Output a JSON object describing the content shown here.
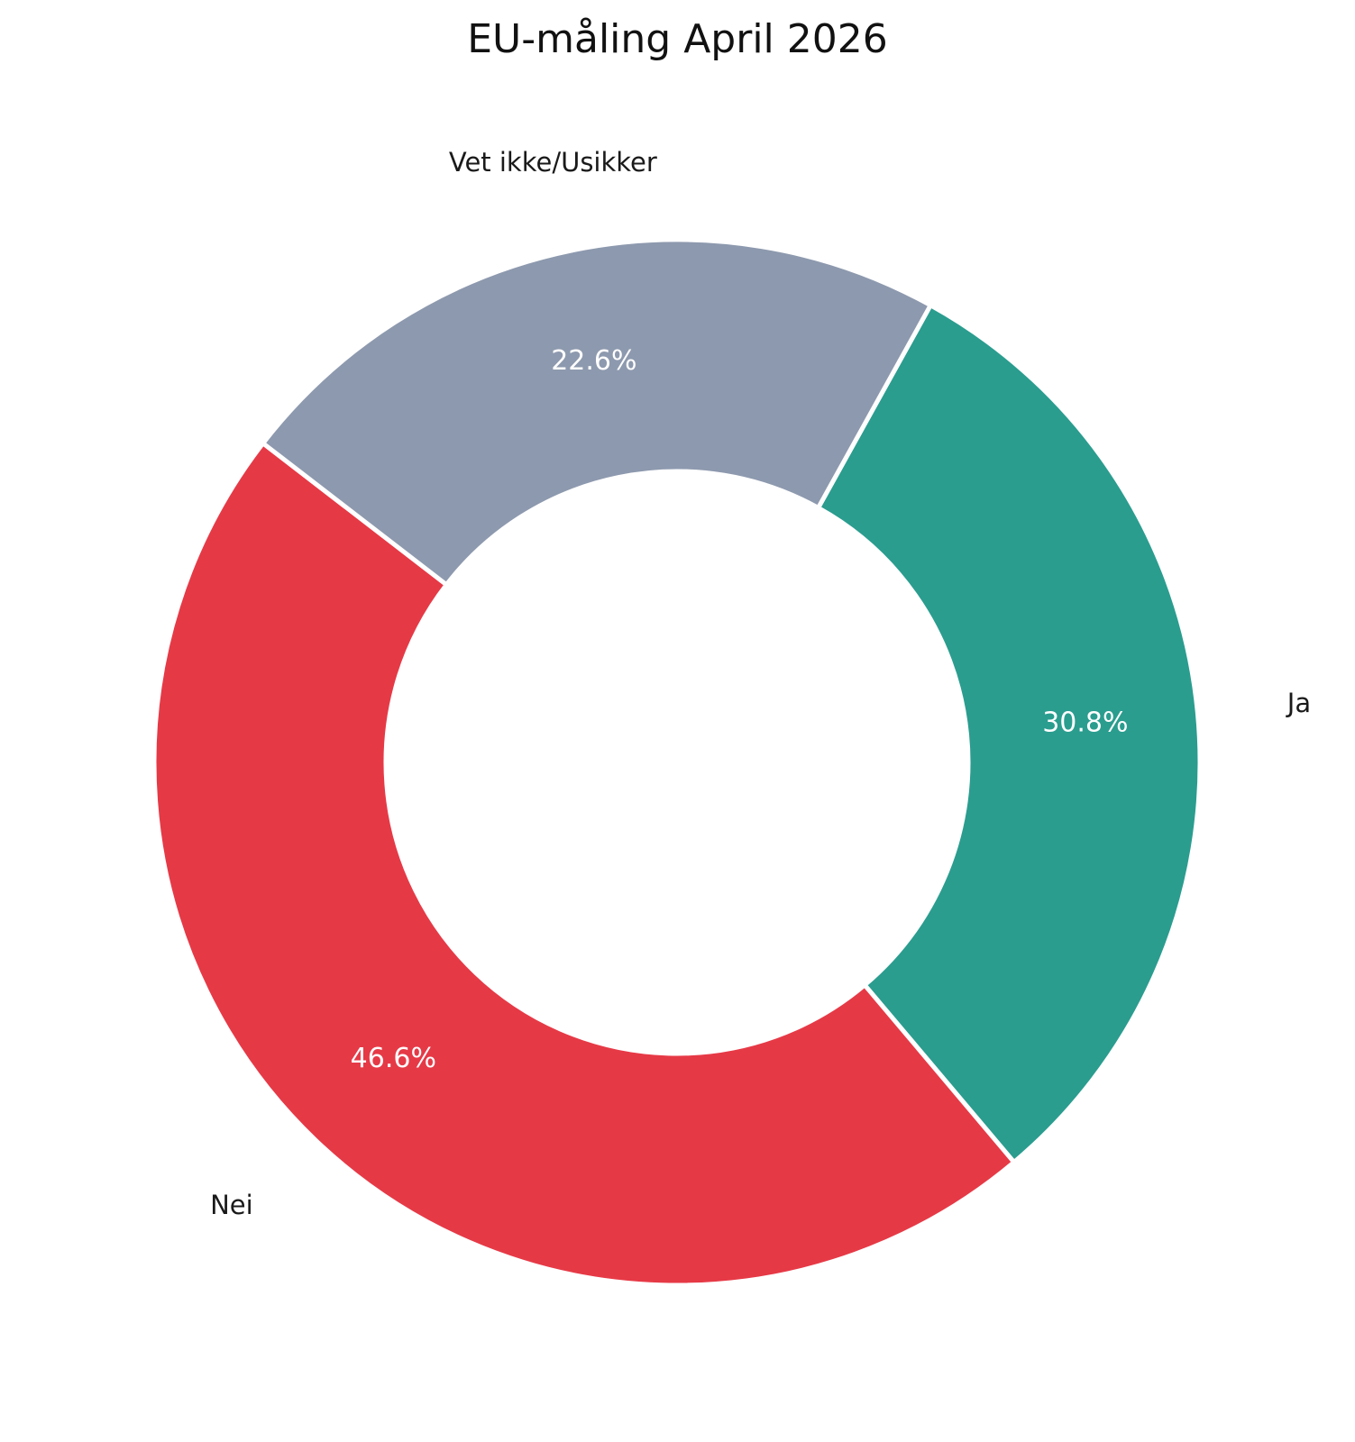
{
  "chart_data": {
    "type": "pie",
    "title": "EU-måling April 2026",
    "donut": true,
    "categories": [
      "Ja",
      "Nei",
      "Vet ikke/Usikker"
    ],
    "values": [
      30.8,
      46.6,
      22.6
    ],
    "value_labels": [
      "30.8%",
      "46.6%",
      "22.6%"
    ],
    "colors": [
      "#2A9D8F",
      "#E63946",
      "#8D99AE"
    ],
    "start_angle_deg": 61,
    "direction": "clockwise"
  }
}
